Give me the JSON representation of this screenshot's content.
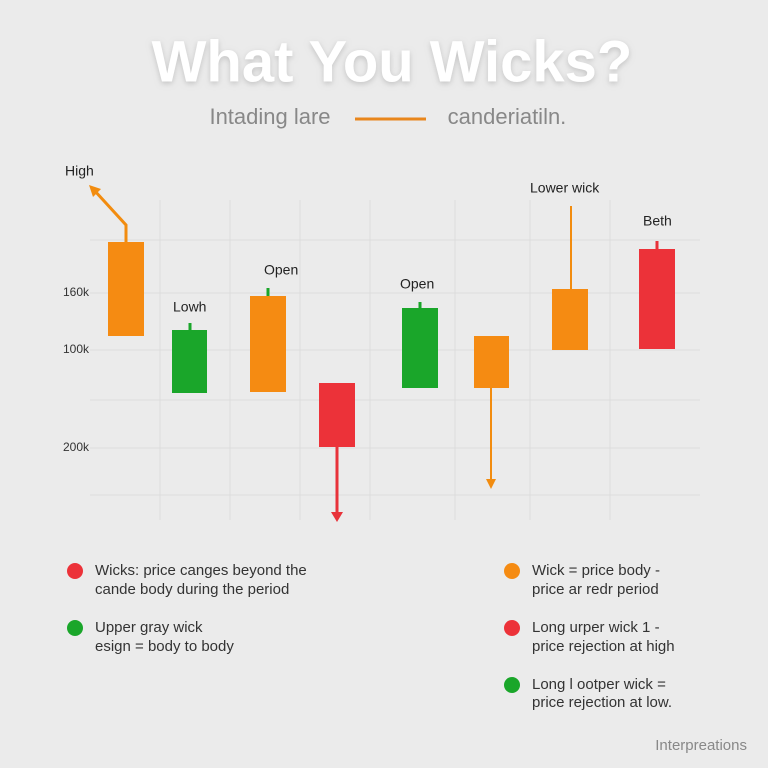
{
  "title": "What You Wicks?",
  "subtitle": {
    "left": "Intading lare",
    "right": "canderiatiln."
  },
  "labels": [
    "High",
    "Lowh",
    "Open",
    "Open",
    "Lower wick",
    "Beth"
  ],
  "axis_labels": [
    "160k",
    "100k",
    "200k"
  ],
  "legend": {
    "left": [
      {
        "lines": [
          "Wicks: price canges beyond the",
          "cande body during the period"
        ]
      },
      {
        "lines": [
          "Upper gray wick",
          "esign = body to body"
        ]
      }
    ],
    "right": [
      {
        "lines": [
          "Wick = price body -",
          "price ar redr period"
        ]
      },
      {
        "lines": [
          "Long urper wick 1 -",
          "price rejection at high"
        ]
      },
      {
        "lines": [
          "Long l ootper wick =",
          "price rejection at low."
        ]
      }
    ]
  },
  "footer": "Interpreations"
}
